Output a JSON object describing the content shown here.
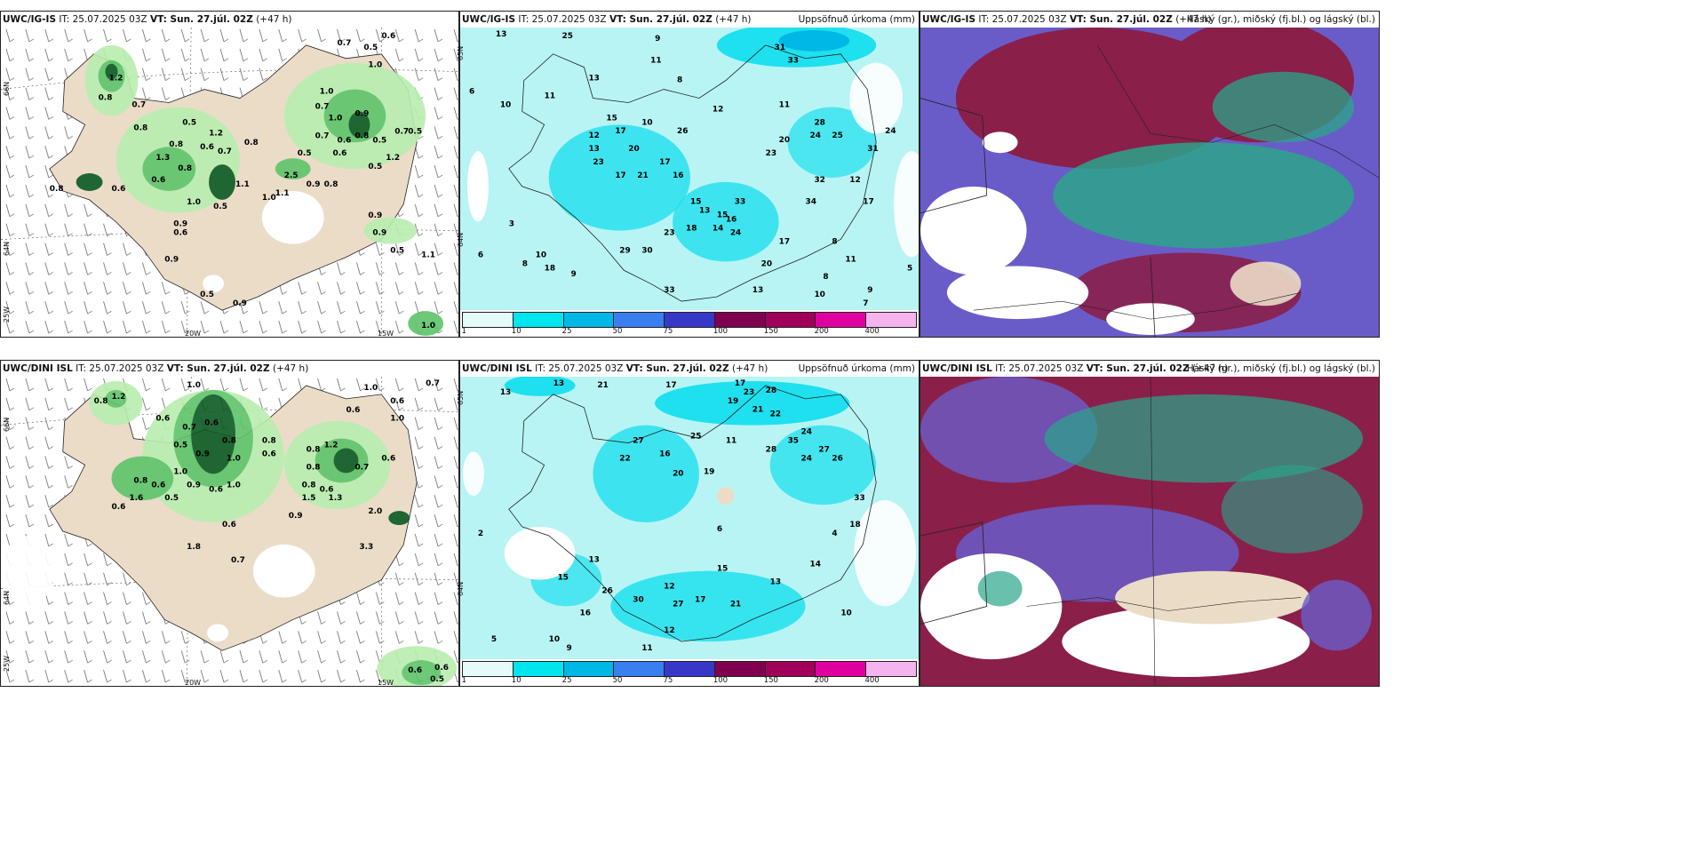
{
  "rows": [
    {
      "model": "UWC/IG-IS",
      "it_label": "IT:",
      "it_value": "25.07.2025 03Z",
      "vt_label": "VT: Sun. 27.júl. 02Z",
      "lead": "(+47 h)"
    },
    {
      "model": "UWC/DINI ISL",
      "it_label": "IT:",
      "it_value": "25.07.2025 03Z",
      "vt_label": "VT: Sun. 27.júl. 02Z",
      "lead": "(+47 h)"
    }
  ],
  "precip_panel_title": "Uppsöfnuð úrkoma (mm)",
  "cloud_panel_title": "Háský (gr.), miðský (fj.bl.) og lágský (bl.)",
  "axis_labels": {
    "lat_66": "66N",
    "lat_64": "64N",
    "lat_25w": "25W",
    "lon_20w": "20W",
    "lon_15w": "15W",
    "lat_65_right": "65N",
    "lat_64_right": "64N"
  },
  "legend": {
    "labels": [
      "1",
      "10",
      "25",
      "50",
      "75",
      "100",
      "150",
      "200",
      "400"
    ],
    "colors": [
      "#e6fafa",
      "#00e5ee",
      "#00b8e6",
      "#3a7ff0",
      "#3838c8",
      "#800050",
      "#a0005a",
      "#e000a0",
      "#f5b4ee"
    ]
  },
  "colors": {
    "land": "#ebdcc8",
    "sea": "#ffffff",
    "green_light": "#b9eeb0",
    "green_mid": "#5ec46a",
    "green_dark": "#0b5a22",
    "precip_bg": "#b8f4f4",
    "precip_cyan": "#1ee0ee",
    "cloud_purple": "#6a5cc8",
    "cloud_maroon": "#8a1f4a",
    "cloud_teal": "#2aa58a"
  },
  "wind_numbers_top": [
    "0.7",
    "0.6",
    "1.0",
    "0.5",
    "0.7",
    "1.0",
    "0.7",
    "0.8",
    "0.5",
    "0.7",
    "0.8",
    "1.2",
    "0.6",
    "0.8",
    "0.6",
    "0.5",
    "0.8",
    "1.3",
    "0.6",
    "0.8",
    "1.2",
    "0.9",
    "1.0",
    "0.6",
    "0.5",
    "0.8",
    "0.9",
    "0.5",
    "1.0",
    "0.9",
    "0.8",
    "0.6",
    "0.6",
    "0.8",
    "0.7",
    "0.6",
    "1.0",
    "1.1",
    "1.0",
    "1.0",
    "0.5",
    "0.8",
    "0.9",
    "1.3",
    "1.1"
  ],
  "wind_numbers_bottom": [
    "0.8",
    "1.2",
    "1.0",
    "0.6",
    "0.7",
    "0.6",
    "0.8",
    "0.5",
    "0.9",
    "1.0",
    "0.6",
    "0.8",
    "0.6",
    "0.9",
    "1.0",
    "0.5",
    "1.0",
    "0.8",
    "0.7",
    "0.6",
    "1.2",
    "0.9",
    "0.8",
    "1.5",
    "1.0",
    "0.6",
    "0.7",
    "0.6",
    "0.9",
    "2.0",
    "3.3",
    "1.8",
    "0.6",
    "0.7",
    "0.6",
    "0.5"
  ],
  "precip_numbers_top": [
    "13",
    "25",
    "9",
    "11",
    "31",
    "10",
    "9",
    "6",
    "10",
    "8",
    "10",
    "11",
    "13",
    "15",
    "12",
    "13",
    "17",
    "26",
    "12",
    "23",
    "20",
    "17",
    "21",
    "16",
    "17",
    "15",
    "33",
    "13",
    "15",
    "16",
    "24",
    "18",
    "14",
    "23",
    "20",
    "28",
    "11",
    "24",
    "25",
    "23",
    "29",
    "30",
    "33",
    "18",
    "9",
    "8",
    "10",
    "20",
    "17",
    "34",
    "32",
    "12",
    "17",
    "31",
    "24",
    "8",
    "11",
    "8",
    "13",
    "5",
    "6",
    "3",
    "9",
    "10",
    "7"
  ],
  "precip_numbers_bottom": [
    "13",
    "13",
    "21",
    "17",
    "23",
    "27",
    "19",
    "21",
    "16",
    "13",
    "15",
    "12",
    "14",
    "22",
    "19",
    "11",
    "20",
    "25",
    "35",
    "24",
    "26",
    "27",
    "28",
    "32",
    "33",
    "18",
    "14",
    "13",
    "15",
    "30",
    "27",
    "17",
    "26",
    "21",
    "12",
    "13",
    "15",
    "16",
    "10",
    "9",
    "11",
    "12",
    "6",
    "4",
    "2",
    "5",
    "10"
  ]
}
